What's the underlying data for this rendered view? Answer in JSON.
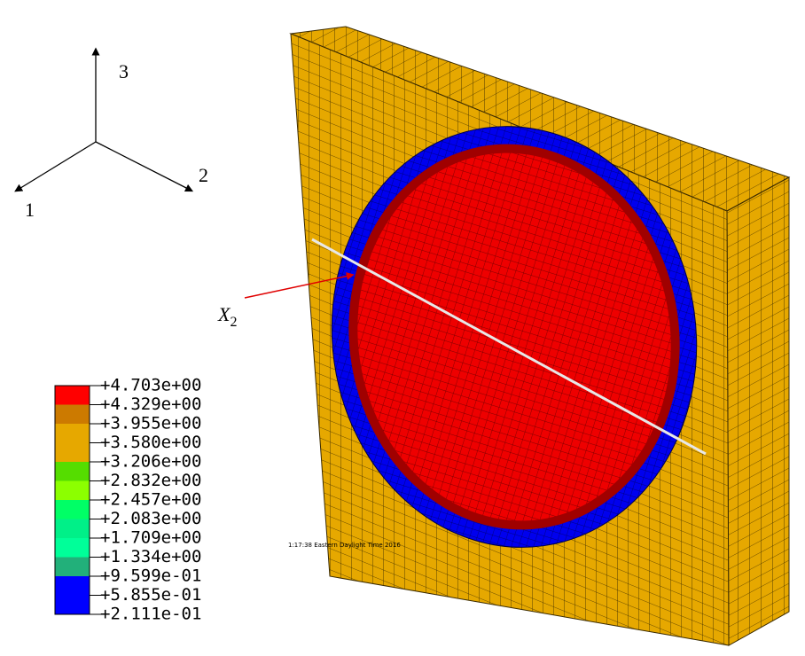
{
  "triad": {
    "axis_3": "3",
    "axis_2": "2",
    "axis_1": "1"
  },
  "annotation": {
    "symbol": "X",
    "subscript": "2"
  },
  "timestamp": "1:17:38 Eastern Daylight Time 2016",
  "legend": {
    "labels": [
      "+4.703e+00",
      "+4.329e+00",
      "+3.955e+00",
      "+3.580e+00",
      "+3.206e+00",
      "+2.832e+00",
      "+2.457e+00",
      "+2.083e+00",
      "+1.709e+00",
      "+1.334e+00",
      "+9.599e-01",
      "+5.855e-01",
      "+2.111e-01"
    ],
    "colors": [
      "#ff0000",
      "#cc7a00",
      "#e6a800",
      "#e6a800",
      "#55dd00",
      "#8cff00",
      "#00ff66",
      "#00f088",
      "#00ff99",
      "#22b07a",
      "#0000ff",
      "#0000ff"
    ]
  }
}
